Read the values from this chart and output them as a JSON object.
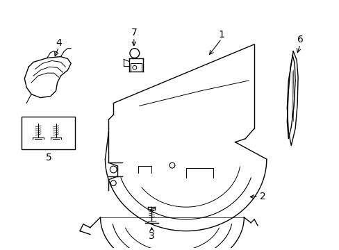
{
  "background_color": "#ffffff",
  "line_color": "#000000",
  "figure_width": 4.89,
  "figure_height": 3.6,
  "dpi": 100
}
